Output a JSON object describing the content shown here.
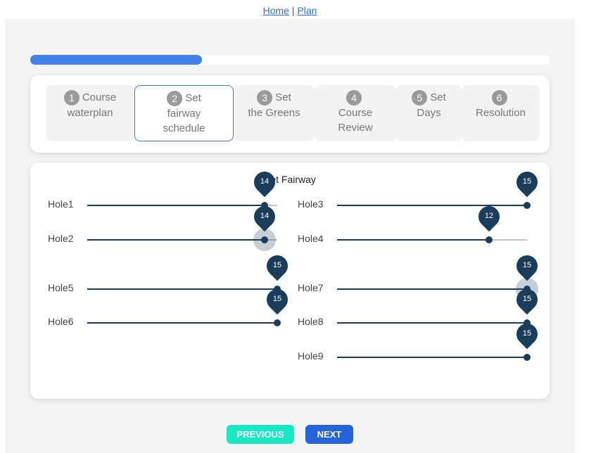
{
  "nav": {
    "home": "Home",
    "separator": "|",
    "plan": "Plan"
  },
  "progress": {
    "fraction": 0.33
  },
  "steps": [
    {
      "num": "1",
      "line1": "Course",
      "line2": "waterplan",
      "line3": ""
    },
    {
      "num": "2",
      "line1": "Set",
      "line2": "fairway",
      "line3": "schedule"
    },
    {
      "num": "3",
      "line1": "Set",
      "line2": "the Greens",
      "line3": ""
    },
    {
      "num": "4",
      "line1": "",
      "line2": "Course",
      "line3": "Review"
    },
    {
      "num": "5",
      "line1": "Set",
      "line2": "Days",
      "line3": ""
    },
    {
      "num": "6",
      "line1": "",
      "line2": "Resolution",
      "line3": ""
    }
  ],
  "sliders": {
    "title": "Set Fairway",
    "max": 15,
    "holes": [
      {
        "label": "Hole1",
        "value": 14
      },
      {
        "label": "Hole2",
        "value": 14
      },
      {
        "label": "Hole5",
        "value": 15
      },
      {
        "label": "Hole6",
        "value": 15
      },
      {
        "label": "Hole3",
        "value": 15
      },
      {
        "label": "Hole4",
        "value": 12
      },
      {
        "label": "Hole7",
        "value": 15
      },
      {
        "label": "Hole8",
        "value": 15
      },
      {
        "label": "Hole9",
        "value": 15
      }
    ]
  },
  "buttons": {
    "previous": "PREVIOUS",
    "next": "NEXT"
  },
  "colors": {
    "accent": "#4481eb",
    "slider": "#1b3d5c",
    "previous": "#19e8c5",
    "next": "#2563d8"
  }
}
